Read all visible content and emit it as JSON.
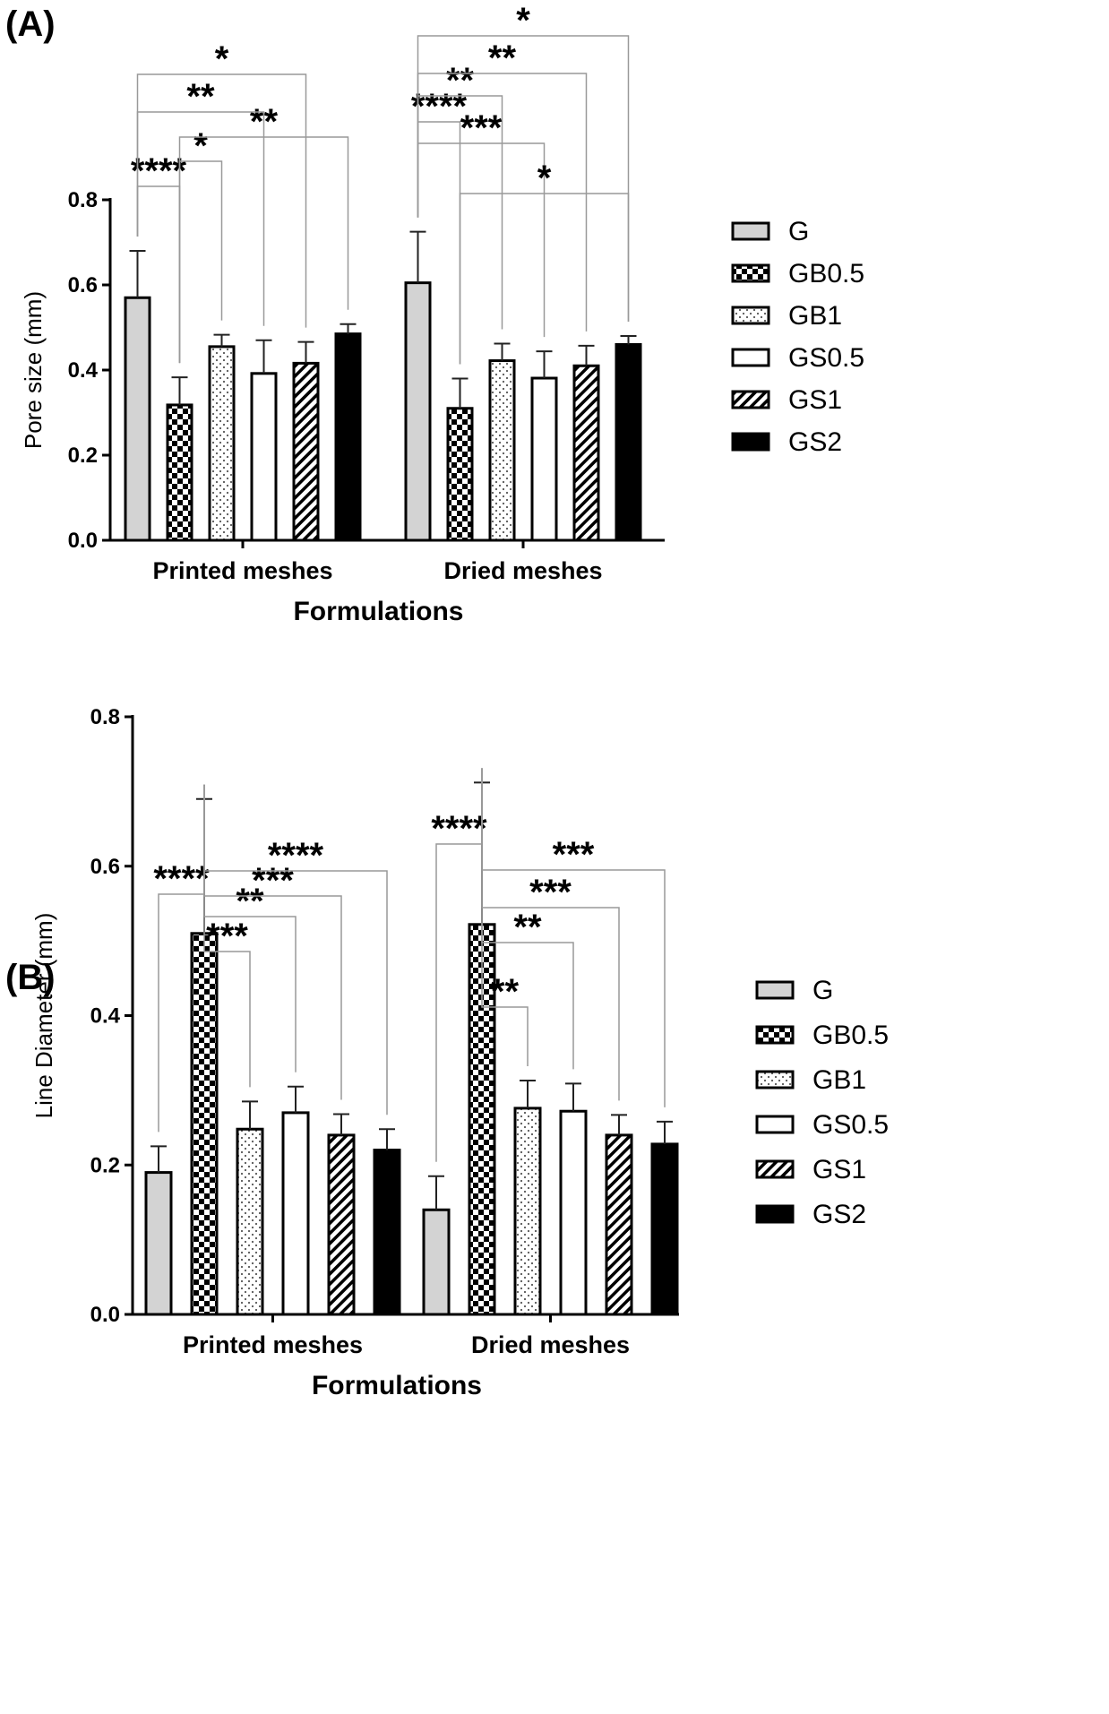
{
  "chart_data": [
    {
      "type": "bar",
      "panel_label": "(A)",
      "categories": [
        "Printed meshes",
        "Dried meshes"
      ],
      "series": [
        {
          "name": "G",
          "values": [
            0.57,
            0.605
          ],
          "errors": [
            0.11,
            0.12
          ]
        },
        {
          "name": "GB0.5",
          "values": [
            0.318,
            0.31
          ],
          "errors": [
            0.065,
            0.07
          ]
        },
        {
          "name": "GB1",
          "values": [
            0.455,
            0.422
          ],
          "errors": [
            0.028,
            0.04
          ]
        },
        {
          "name": "GS0.5",
          "values": [
            0.392,
            0.381
          ],
          "errors": [
            0.078,
            0.063
          ]
        },
        {
          "name": "GS1",
          "values": [
            0.416,
            0.41
          ],
          "errors": [
            0.05,
            0.047
          ]
        },
        {
          "name": "GS2",
          "values": [
            0.485,
            0.46
          ],
          "errors": [
            0.023,
            0.02
          ]
        }
      ],
      "xlabel": "Formulations",
      "ylabel": "Pore size  (mm)",
      "ylim": [
        0,
        0.8
      ],
      "yticks": [
        "0.0",
        "0.2",
        "0.4",
        "0.6",
        "0.8"
      ],
      "grid": false,
      "legend": "right",
      "significance": [
        {
          "group": 0,
          "from": 0,
          "to": 1,
          "label": "****"
        },
        {
          "group": 0,
          "from": 1,
          "to": 2,
          "label": "*"
        },
        {
          "group": 0,
          "from": 1,
          "to": 5,
          "label": "**"
        },
        {
          "group": 0,
          "from": 0,
          "to": 3,
          "label": "**"
        },
        {
          "group": 0,
          "from": 0,
          "to": 4,
          "label": "*"
        },
        {
          "group": 1,
          "from": 0,
          "to": 1,
          "label": "****"
        },
        {
          "group": 1,
          "from": 0,
          "to": 2,
          "label": "**"
        },
        {
          "group": 1,
          "from": 0,
          "to": 3,
          "label": "***"
        },
        {
          "group": 1,
          "from": 0,
          "to": 4,
          "label": "**"
        },
        {
          "group": 1,
          "from": 0,
          "to": 5,
          "label": "*"
        },
        {
          "group": 1,
          "from": 1,
          "to": 5,
          "label": "*"
        }
      ]
    },
    {
      "type": "bar",
      "panel_label": "(B)",
      "categories": [
        "Printed meshes",
        "Dried meshes"
      ],
      "series": [
        {
          "name": "G",
          "values": [
            0.19,
            0.14
          ],
          "errors": [
            0.035,
            0.045
          ]
        },
        {
          "name": "GB0.5",
          "values": [
            0.51,
            0.522
          ],
          "errors": [
            0.18,
            0.19
          ]
        },
        {
          "name": "GB1",
          "values": [
            0.248,
            0.276
          ],
          "errors": [
            0.037,
            0.037
          ]
        },
        {
          "name": "GS0.5",
          "values": [
            0.27,
            0.272
          ],
          "errors": [
            0.035,
            0.037
          ]
        },
        {
          "name": "GS1",
          "values": [
            0.24,
            0.24
          ],
          "errors": [
            0.028,
            0.027
          ]
        },
        {
          "name": "GS2",
          "values": [
            0.22,
            0.228
          ],
          "errors": [
            0.028,
            0.03
          ]
        }
      ],
      "xlabel": "Formulations",
      "ylabel": "Line Diameter  (mm)",
      "ylim": [
        0,
        0.8
      ],
      "yticks": [
        "0.0",
        "0.2",
        "0.4",
        "0.6",
        "0.8"
      ],
      "grid": false,
      "legend": "right",
      "significance": [
        {
          "group": 0,
          "from": 0,
          "to": 1,
          "label": "****"
        },
        {
          "group": 0,
          "from": 1,
          "to": 2,
          "label": "***"
        },
        {
          "group": 0,
          "from": 1,
          "to": 3,
          "label": "**"
        },
        {
          "group": 0,
          "from": 1,
          "to": 4,
          "label": "***"
        },
        {
          "group": 0,
          "from": 1,
          "to": 5,
          "label": "****"
        },
        {
          "group": 1,
          "from": 0,
          "to": 1,
          "label": "****"
        },
        {
          "group": 1,
          "from": 1,
          "to": 2,
          "label": "**"
        },
        {
          "group": 1,
          "from": 1,
          "to": 3,
          "label": "**"
        },
        {
          "group": 1,
          "from": 1,
          "to": 4,
          "label": "***"
        },
        {
          "group": 1,
          "from": 1,
          "to": 5,
          "label": "***"
        }
      ]
    }
  ]
}
